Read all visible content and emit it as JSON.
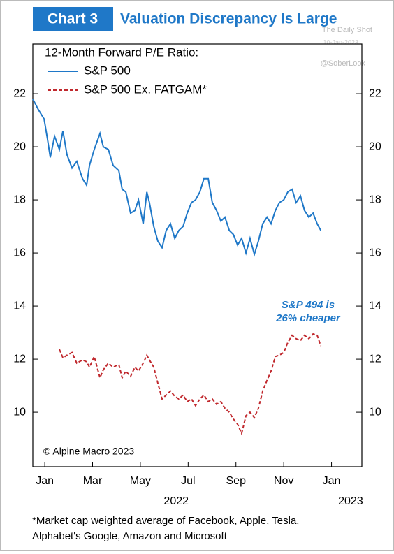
{
  "header": {
    "badge": "Chart 3",
    "title": "Valuation Discrepancy Is Large"
  },
  "watermark": [
    "The Daily Shot",
    "10-Jan-2023",
    "@SoberLook"
  ],
  "chart_data": {
    "type": "line",
    "legend_title": "12-Month Forward P/E Ratio:",
    "legend": "top-left",
    "grid": false,
    "x": [
      0,
      0.23,
      0.47,
      0.61,
      0.73,
      0.91,
      1.11,
      1.26,
      1.43,
      1.64,
      1.84,
      2.08,
      2.25,
      2.37,
      2.57,
      2.81,
      2.95,
      3.16,
      3.36,
      3.6,
      3.74,
      3.89,
      4.09,
      4.27,
      4.42,
      4.62,
      4.77,
      4.88,
      5.06,
      5.23,
      5.41,
      5.58,
      5.76,
      5.94,
      6.11,
      6.29,
      6.46,
      6.64,
      6.81,
      6.99,
      7.16,
      7.34,
      7.51,
      7.69,
      7.87,
      8.04,
      8.22,
      8.39,
      8.57,
      8.74,
      8.92,
      9.09,
      9.27,
      9.44,
      9.62,
      9.8,
      9.97,
      10.15,
      10.32,
      10.5,
      10.67,
      10.85,
      11.02,
      11.2,
      11.37,
      11.55,
      11.73,
      11.9,
      12.05
    ],
    "series": [
      {
        "name": "S&P 500",
        "color": "#1f78c8",
        "linestyle": "solid",
        "values": [
          21.8,
          21.4,
          21.05,
          20.3,
          19.6,
          20.4,
          19.9,
          20.6,
          19.7,
          19.2,
          19.45,
          18.8,
          18.55,
          19.3,
          19.9,
          20.5,
          20.0,
          19.9,
          19.3,
          19.1,
          18.4,
          18.3,
          17.5,
          17.6,
          18.0,
          17.1,
          18.3,
          17.9,
          17.0,
          16.45,
          16.2,
          16.85,
          17.1,
          16.55,
          16.85,
          17.0,
          17.5,
          17.9,
          18.0,
          18.3,
          18.8,
          18.8,
          17.9,
          17.6,
          17.2,
          17.35,
          16.85,
          16.7,
          16.3,
          16.55,
          16.0,
          16.55,
          15.95,
          16.45,
          17.1,
          17.35,
          17.1,
          17.6,
          17.9,
          18.0,
          18.3,
          18.4,
          17.9,
          18.15,
          17.6,
          17.35,
          17.5,
          17.1,
          16.85
        ]
      },
      {
        "name": "S&P 500  Ex. FATGAM*",
        "color": "#c0282d",
        "linestyle": "dashed",
        "values": [
          null,
          null,
          null,
          null,
          null,
          null,
          12.37,
          12.05,
          12.15,
          12.25,
          11.85,
          11.97,
          11.9,
          11.7,
          12.1,
          11.3,
          11.6,
          11.85,
          11.7,
          11.8,
          11.3,
          11.55,
          11.35,
          11.7,
          11.55,
          11.85,
          12.15,
          11.97,
          11.7,
          11.1,
          10.5,
          10.65,
          10.8,
          10.6,
          10.5,
          10.65,
          10.4,
          10.5,
          10.25,
          10.5,
          10.65,
          10.4,
          10.5,
          10.3,
          10.4,
          10.15,
          10.0,
          9.75,
          9.55,
          9.2,
          9.87,
          10.0,
          9.8,
          10.15,
          10.8,
          11.2,
          11.55,
          12.1,
          12.15,
          12.25,
          12.63,
          12.9,
          12.77,
          12.7,
          12.9,
          12.77,
          12.95,
          12.9,
          12.5
        ]
      }
    ],
    "xlim": [
      0,
      13.77
    ],
    "xticks": [
      {
        "value": 0.5,
        "label": "Jan"
      },
      {
        "value": 2.5,
        "label": "Mar"
      },
      {
        "value": 4.5,
        "label": "May"
      },
      {
        "value": 6.5,
        "label": "Jul"
      },
      {
        "value": 8.5,
        "label": "Sep"
      },
      {
        "value": 10.5,
        "label": "Nov"
      },
      {
        "value": 12.5,
        "label": "Jan"
      }
    ],
    "x_group_labels": [
      {
        "value": 6,
        "label": "2022"
      },
      {
        "value": 13.3,
        "label": "2023"
      }
    ],
    "ylim": [
      7.95,
      23.87
    ],
    "yticks": [
      10,
      12,
      14,
      16,
      18,
      20,
      22
    ],
    "annotation": [
      "S&P 494 is",
      "26% cheaper"
    ],
    "source": "© Alpine Macro 2023"
  },
  "footnote": [
    "*Market cap weighted average of Facebook, Apple, Tesla,",
    "Alphabet's Google, Amazon and Microsoft"
  ]
}
